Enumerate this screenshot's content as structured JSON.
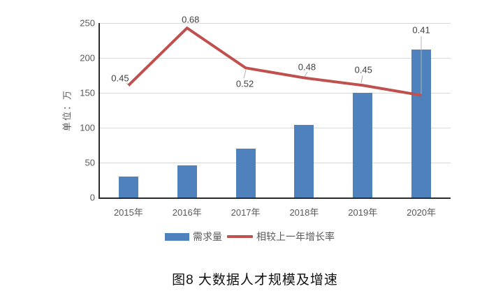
{
  "figure": {
    "caption": "图8 大数据人才规模及增速"
  },
  "chart_data": {
    "type": "bar",
    "subtype": "bar-line-combo",
    "title": "图8 大数据人才规模及增速",
    "categories": [
      "2015年",
      "2016年",
      "2017年",
      "2018年",
      "2019年",
      "2020年"
    ],
    "series": [
      {
        "name": "需求量",
        "type": "bar",
        "axis": "left",
        "values": [
          30,
          46,
          70,
          104,
          150,
          212
        ],
        "color": "#4f81bd"
      },
      {
        "name": "相较上一年增长率",
        "type": "line",
        "axis": "right",
        "values": [
          0.45,
          0.68,
          0.52,
          0.48,
          0.45,
          0.41
        ],
        "labels": [
          "0.45",
          "0.68",
          "0.52",
          "0.48",
          "0.45",
          "0.41"
        ],
        "color": "#c0504d"
      }
    ],
    "xlabel": "",
    "ylabel": "单位：万",
    "y_ticks": [
      0,
      50,
      100,
      150,
      200,
      250
    ],
    "ylim": [
      0,
      250
    ],
    "secondary_ylim": [
      0,
      0.7
    ],
    "grid": true,
    "legend_position": "bottom"
  },
  "colors": {
    "bar": "#4f81bd",
    "line": "#c0504d",
    "gridline": "#d9d9d9",
    "axis": "#2b2b2b",
    "tick_text": "#595959",
    "data_label": "#404040",
    "leader_line": "#b3b3b3"
  }
}
